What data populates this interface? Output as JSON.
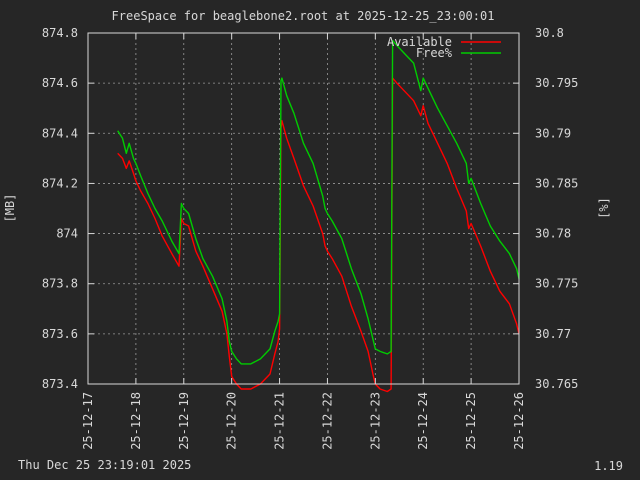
{
  "chart_data": {
    "type": "line",
    "title": "FreeSpace for beaglebone2.root  at 2025-12-25_23:00:01",
    "ylabel": "[MB]",
    "y2label": "[%]",
    "ylim": [
      873.4,
      874.8
    ],
    "y2lim": [
      30.765,
      30.8
    ],
    "yticks": [
      "873.4",
      "873.6",
      "873.8",
      "874",
      "874.2",
      "874.4",
      "874.6",
      "874.8"
    ],
    "y2ticks": [
      "30.765",
      "30.77",
      "30.775",
      "30.78",
      "30.785",
      "30.79",
      "30.795",
      "30.8"
    ],
    "xlim": [
      0,
      9
    ],
    "xticks": [
      "25-12-17",
      "25-12-18",
      "25-12-19",
      "25-12-20",
      "25-12-21",
      "25-12-22",
      "25-12-23",
      "25-12-24",
      "25-12-25",
      "25-12-26"
    ],
    "grid": true,
    "legend_position": "top-right",
    "series": [
      {
        "name": "Available",
        "color": "#ff0000",
        "axis": "left",
        "x": [
          0.62,
          0.72,
          0.8,
          0.86,
          0.95,
          1.0,
          1.1,
          1.25,
          1.4,
          1.55,
          1.75,
          1.9,
          1.95,
          2.0,
          2.1,
          2.25,
          2.4,
          2.6,
          2.8,
          2.9,
          2.95,
          3.0,
          3.1,
          3.2,
          3.4,
          3.6,
          3.8,
          3.9,
          3.97,
          4.0,
          4.03,
          4.05,
          4.15,
          4.3,
          4.5,
          4.7,
          4.9,
          4.95,
          5.0,
          5.1,
          5.3,
          5.5,
          5.7,
          5.85,
          5.95,
          6.0,
          6.1,
          6.25,
          6.33,
          6.36,
          6.45,
          6.6,
          6.8,
          6.95,
          7.0,
          7.1,
          7.3,
          7.5,
          7.7,
          7.9,
          7.95,
          8.0,
          8.2,
          8.4,
          8.6,
          8.8,
          8.95,
          9.0
        ],
        "values": [
          874.32,
          874.3,
          874.26,
          874.29,
          874.24,
          874.21,
          874.17,
          874.12,
          874.06,
          873.99,
          873.92,
          873.87,
          874.06,
          874.04,
          874.03,
          873.93,
          873.87,
          873.78,
          873.69,
          873.6,
          873.51,
          873.43,
          873.4,
          873.38,
          873.38,
          873.4,
          873.44,
          873.52,
          873.57,
          873.62,
          874.42,
          874.45,
          874.38,
          874.3,
          874.19,
          874.11,
          874.0,
          873.95,
          873.93,
          873.9,
          873.83,
          873.71,
          873.61,
          873.53,
          873.44,
          873.4,
          873.38,
          873.37,
          873.38,
          874.62,
          874.6,
          874.57,
          874.53,
          874.47,
          874.51,
          874.44,
          874.36,
          874.28,
          874.18,
          874.09,
          874.02,
          874.04,
          873.95,
          873.85,
          873.77,
          873.72,
          873.64,
          873.6
        ]
      },
      {
        "name": "Free%",
        "color": "#00cc00",
        "axis": "left",
        "x": [
          0.62,
          0.72,
          0.8,
          0.86,
          0.95,
          1.0,
          1.1,
          1.25,
          1.4,
          1.55,
          1.75,
          1.9,
          1.95,
          2.0,
          2.1,
          2.25,
          2.4,
          2.6,
          2.8,
          2.9,
          2.95,
          3.0,
          3.1,
          3.2,
          3.4,
          3.6,
          3.8,
          3.9,
          3.97,
          4.0,
          4.03,
          4.05,
          4.15,
          4.3,
          4.5,
          4.7,
          4.9,
          4.95,
          5.0,
          5.1,
          5.3,
          5.5,
          5.7,
          5.85,
          5.95,
          6.0,
          6.1,
          6.25,
          6.33,
          6.36,
          6.45,
          6.6,
          6.8,
          6.95,
          7.0,
          7.1,
          7.3,
          7.5,
          7.7,
          7.9,
          7.95,
          8.0,
          8.2,
          8.4,
          8.6,
          8.8,
          8.95,
          9.0
        ],
        "values": [
          874.41,
          874.38,
          874.32,
          874.36,
          874.3,
          874.28,
          874.23,
          874.16,
          874.1,
          874.05,
          873.97,
          873.92,
          874.12,
          874.1,
          874.08,
          873.98,
          873.9,
          873.83,
          873.74,
          873.65,
          873.57,
          873.53,
          873.5,
          873.48,
          873.48,
          873.5,
          873.54,
          873.61,
          873.65,
          873.68,
          874.61,
          874.62,
          874.55,
          874.48,
          874.36,
          874.28,
          874.15,
          874.1,
          874.08,
          874.05,
          873.98,
          873.86,
          873.76,
          873.66,
          873.58,
          873.54,
          873.53,
          873.52,
          873.53,
          874.77,
          874.75,
          874.72,
          874.68,
          874.57,
          874.62,
          874.58,
          874.5,
          874.43,
          874.36,
          874.28,
          874.2,
          874.22,
          874.12,
          874.03,
          873.97,
          873.92,
          873.86,
          873.82
        ]
      }
    ]
  },
  "footer": {
    "timestamp": "Thu Dec 25 23:19:01 2025",
    "version": "1.19"
  }
}
